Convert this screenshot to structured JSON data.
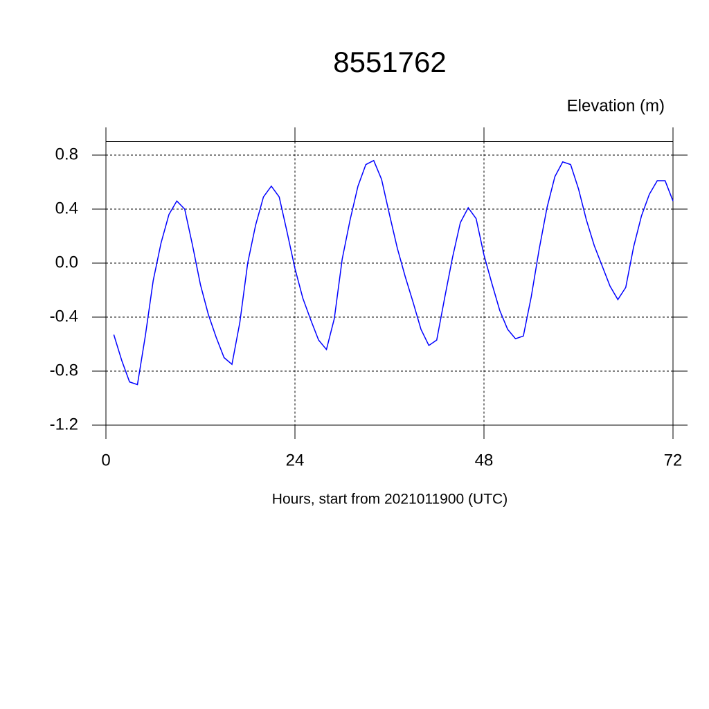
{
  "chart_data": {
    "type": "line",
    "title": "8551762",
    "ylabel": "Elevation (m)",
    "xlabel": "Hours, start from 2021011900 (UTC)",
    "x": [
      1,
      2,
      3,
      4,
      5,
      6,
      7,
      8,
      9,
      10,
      11,
      12,
      13,
      14,
      15,
      16,
      17,
      18,
      19,
      20,
      21,
      22,
      23,
      24,
      25,
      26,
      27,
      28,
      29,
      30,
      31,
      32,
      33,
      34,
      35,
      36,
      37,
      38,
      39,
      40,
      41,
      42,
      43,
      44,
      45,
      46,
      47,
      48,
      49,
      50,
      51,
      52,
      53,
      54,
      55,
      56,
      57,
      58,
      59,
      60,
      61,
      62,
      63,
      64,
      65,
      66,
      67,
      68,
      69,
      70,
      71,
      72
    ],
    "series": [
      {
        "name": "Elevation",
        "color": "#0000ff",
        "values": [
          -0.53,
          -0.72,
          -0.88,
          -0.9,
          -0.54,
          -0.13,
          0.15,
          0.36,
          0.46,
          0.4,
          0.13,
          -0.16,
          -0.38,
          -0.55,
          -0.7,
          -0.75,
          -0.44,
          0.0,
          0.28,
          0.49,
          0.57,
          0.49,
          0.23,
          -0.04,
          -0.26,
          -0.42,
          -0.57,
          -0.64,
          -0.41,
          0.03,
          0.32,
          0.57,
          0.73,
          0.76,
          0.62,
          0.36,
          0.11,
          -0.1,
          -0.29,
          -0.49,
          -0.61,
          -0.57,
          -0.26,
          0.04,
          0.3,
          0.41,
          0.33,
          0.06,
          -0.15,
          -0.35,
          -0.49,
          -0.56,
          -0.54,
          -0.25,
          0.1,
          0.41,
          0.64,
          0.75,
          0.73,
          0.55,
          0.32,
          0.13,
          -0.02,
          -0.17,
          -0.27,
          -0.18,
          0.12,
          0.35,
          0.51,
          0.61,
          0.61,
          0.46
        ]
      }
    ],
    "xlim": [
      0,
      72
    ],
    "xticks": [
      0,
      24,
      48,
      72
    ],
    "ylim": [
      -1.2,
      0.9
    ],
    "yticks": [
      {
        "value": -1.2,
        "label": "-1.2"
      },
      {
        "value": -0.8,
        "label": "-0.8"
      },
      {
        "value": -0.4,
        "label": "-0.4"
      },
      {
        "value": 0,
        "label": "0.0"
      },
      {
        "value": 0.4,
        "label": "0.4"
      },
      {
        "value": 0.8,
        "label": "0.8"
      }
    ],
    "grid": true
  }
}
